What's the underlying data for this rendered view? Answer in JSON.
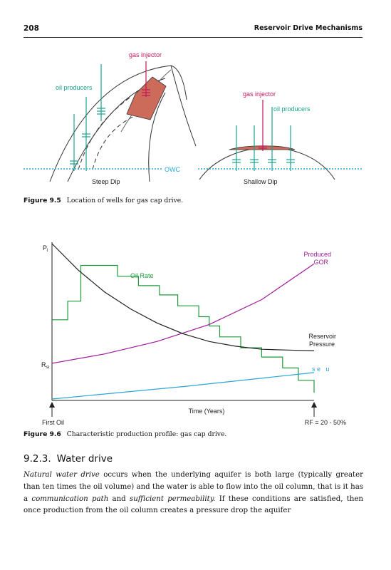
{
  "header": {
    "page_number": "208",
    "running_title": "Reservoir Drive Mechanisms"
  },
  "figure_95": {
    "labels": {
      "gas_injector_left": "gas injector",
      "oil_producers_left": "oil producers",
      "gas_injector_right": "gas injector",
      "oil_producers_right": "oil producers",
      "owc": "OWC",
      "steep_dip": "Steep Dip",
      "shallow_dip": "Shallow Dip"
    },
    "caption_number": "Figure 9.5",
    "caption_text": "Location of wells for gas cap drive.",
    "colors": {
      "gas_cap": "#cd6b5a",
      "producer": "#1aa38f",
      "injector": "#c2185b",
      "owc_line": "#2aa9d8"
    }
  },
  "figure_96": {
    "caption_number": "Figure 9.6",
    "caption_text": "Characteristic production profile: gas cap drive.",
    "chart_data": {
      "type": "line",
      "title": "",
      "xlabel": "Time (Years)",
      "ylabel": "",
      "y_axis_labels": {
        "top": "Pi",
        "top_sub": "i",
        "mid": "Rsi",
        "mid_sub": "si"
      },
      "x_axis_labels": {
        "start": "First Oil",
        "end": "RF = 20 - 50%"
      },
      "series": [
        {
          "name": "Oil Rate",
          "color": "#1f9a3a",
          "x": [
            0,
            0.06,
            0.06,
            0.11,
            0.11,
            0.25,
            0.25,
            0.33,
            0.33,
            0.41,
            0.41,
            0.48,
            0.48,
            0.56,
            0.56,
            0.6,
            0.6,
            0.64,
            0.64,
            0.72,
            0.72,
            0.8,
            0.8,
            0.88,
            0.88,
            0.94,
            0.94,
            1.0,
            1.0
          ],
          "y": [
            0.51,
            0.51,
            0.63,
            0.63,
            0.86,
            0.86,
            0.79,
            0.79,
            0.73,
            0.73,
            0.67,
            0.67,
            0.6,
            0.6,
            0.53,
            0.53,
            0.47,
            0.47,
            0.4,
            0.4,
            0.33,
            0.33,
            0.27,
            0.27,
            0.2,
            0.2,
            0.12,
            0.12,
            0.04
          ]
        },
        {
          "name": "Produced GOR",
          "color": "#a01a9a",
          "x": [
            0,
            0.2,
            0.4,
            0.6,
            0.8,
            1.0
          ],
          "y": [
            0.23,
            0.29,
            0.37,
            0.48,
            0.64,
            0.87
          ]
        },
        {
          "name": "Reservoir Pressure",
          "color": "#222222",
          "x": [
            0,
            0.1,
            0.2,
            0.3,
            0.4,
            0.5,
            0.6,
            0.7,
            0.8,
            0.9,
            1.0
          ],
          "y": [
            1.0,
            0.83,
            0.69,
            0.58,
            0.49,
            0.42,
            0.37,
            0.34,
            0.32,
            0.315,
            0.31
          ]
        },
        {
          "name": "",
          "color": "#29a6d6",
          "x": [
            0,
            0.5,
            1.0
          ],
          "y": [
            0.0,
            0.08,
            0.17
          ]
        }
      ],
      "annotations": [
        "Oil Rate",
        "Produced",
        "GOR",
        "Reservoir",
        "Pressure",
        "s e   u"
      ]
    }
  },
  "section": {
    "number": "9.2.3.",
    "title": "Water drive"
  },
  "body": {
    "lead_italic": "Natural water drive",
    "text_1": " occurs when the underlying aquifer is both large (typically greater than ten times the oil volume) and the water is able to flow into the oil column, that is it has a ",
    "italic_2": "communication path",
    "text_2": " and ",
    "italic_3": "sufficient permeability.",
    "text_3": " If these conditions are satisfied, then once production from the oil column creates a pressure drop the aquifer"
  }
}
